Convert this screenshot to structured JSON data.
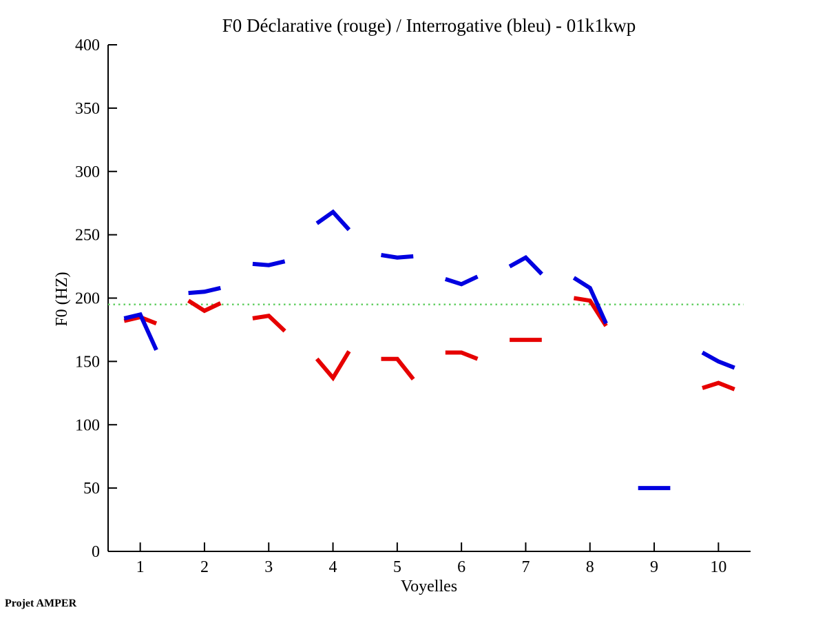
{
  "title": "F0 Déclarative (rouge) / Interrogative (bleu) - 01k1kwp",
  "footer": "Projet AMPER",
  "colors": {
    "declarative": "#e60000",
    "interrogative": "#0000e0",
    "reference_line": "#63cf63",
    "axis": "#000000",
    "background": "#ffffff"
  },
  "chart_data": {
    "type": "line",
    "title": "F0 Déclarative (rouge) / Interrogative (bleu) - 01k1kwp",
    "xlabel": "Voyelles",
    "ylabel": "F0 (HZ)",
    "xlim": [
      0.5,
      10.5
    ],
    "ylim": [
      0,
      400
    ],
    "xticks": [
      1,
      2,
      3,
      4,
      5,
      6,
      7,
      8,
      9,
      10
    ],
    "yticks": [
      0,
      50,
      100,
      150,
      200,
      250,
      300,
      350,
      400
    ],
    "grid": false,
    "legend_position": "none (encoded in title)",
    "reference_line": {
      "y": 195,
      "style": "dotted",
      "color": "#63cf63"
    },
    "point_offsets": [
      -0.25,
      0,
      0.25
    ],
    "series": [
      {
        "name": "Déclarative (rouge)",
        "color": "#e60000",
        "segments": [
          {
            "vowel": 1,
            "values": [
              182,
              185,
              180
            ]
          },
          {
            "vowel": 2,
            "values": [
              198,
              190,
              196
            ]
          },
          {
            "vowel": 3,
            "values": [
              184,
              186,
              174
            ]
          },
          {
            "vowel": 4,
            "values": [
              152,
              137,
              158
            ]
          },
          {
            "vowel": 5,
            "values": [
              152,
              152,
              136
            ]
          },
          {
            "vowel": 6,
            "values": [
              157,
              157,
              152
            ]
          },
          {
            "vowel": 7,
            "values": [
              167,
              167,
              167
            ]
          },
          {
            "vowel": 8,
            "values": [
              200,
              198,
              178
            ]
          },
          {
            "vowel": 10,
            "values": [
              129,
              133,
              128
            ]
          }
        ]
      },
      {
        "name": "Interrogative (bleu)",
        "color": "#0000e0",
        "segments": [
          {
            "vowel": 1,
            "values": [
              184,
              187,
              159
            ]
          },
          {
            "vowel": 2,
            "values": [
              204,
              205,
              208
            ]
          },
          {
            "vowel": 3,
            "values": [
              227,
              226,
              229
            ]
          },
          {
            "vowel": 4,
            "values": [
              259,
              268,
              254
            ]
          },
          {
            "vowel": 5,
            "values": [
              234,
              232,
              233
            ]
          },
          {
            "vowel": 6,
            "values": [
              215,
              211,
              217
            ]
          },
          {
            "vowel": 7,
            "values": [
              225,
              232,
              219
            ]
          },
          {
            "vowel": 8,
            "values": [
              216,
              208,
              180
            ]
          },
          {
            "vowel": 9,
            "values": [
              50,
              50,
              50
            ]
          },
          {
            "vowel": 10,
            "values": [
              157,
              150,
              145
            ]
          }
        ]
      }
    ]
  }
}
